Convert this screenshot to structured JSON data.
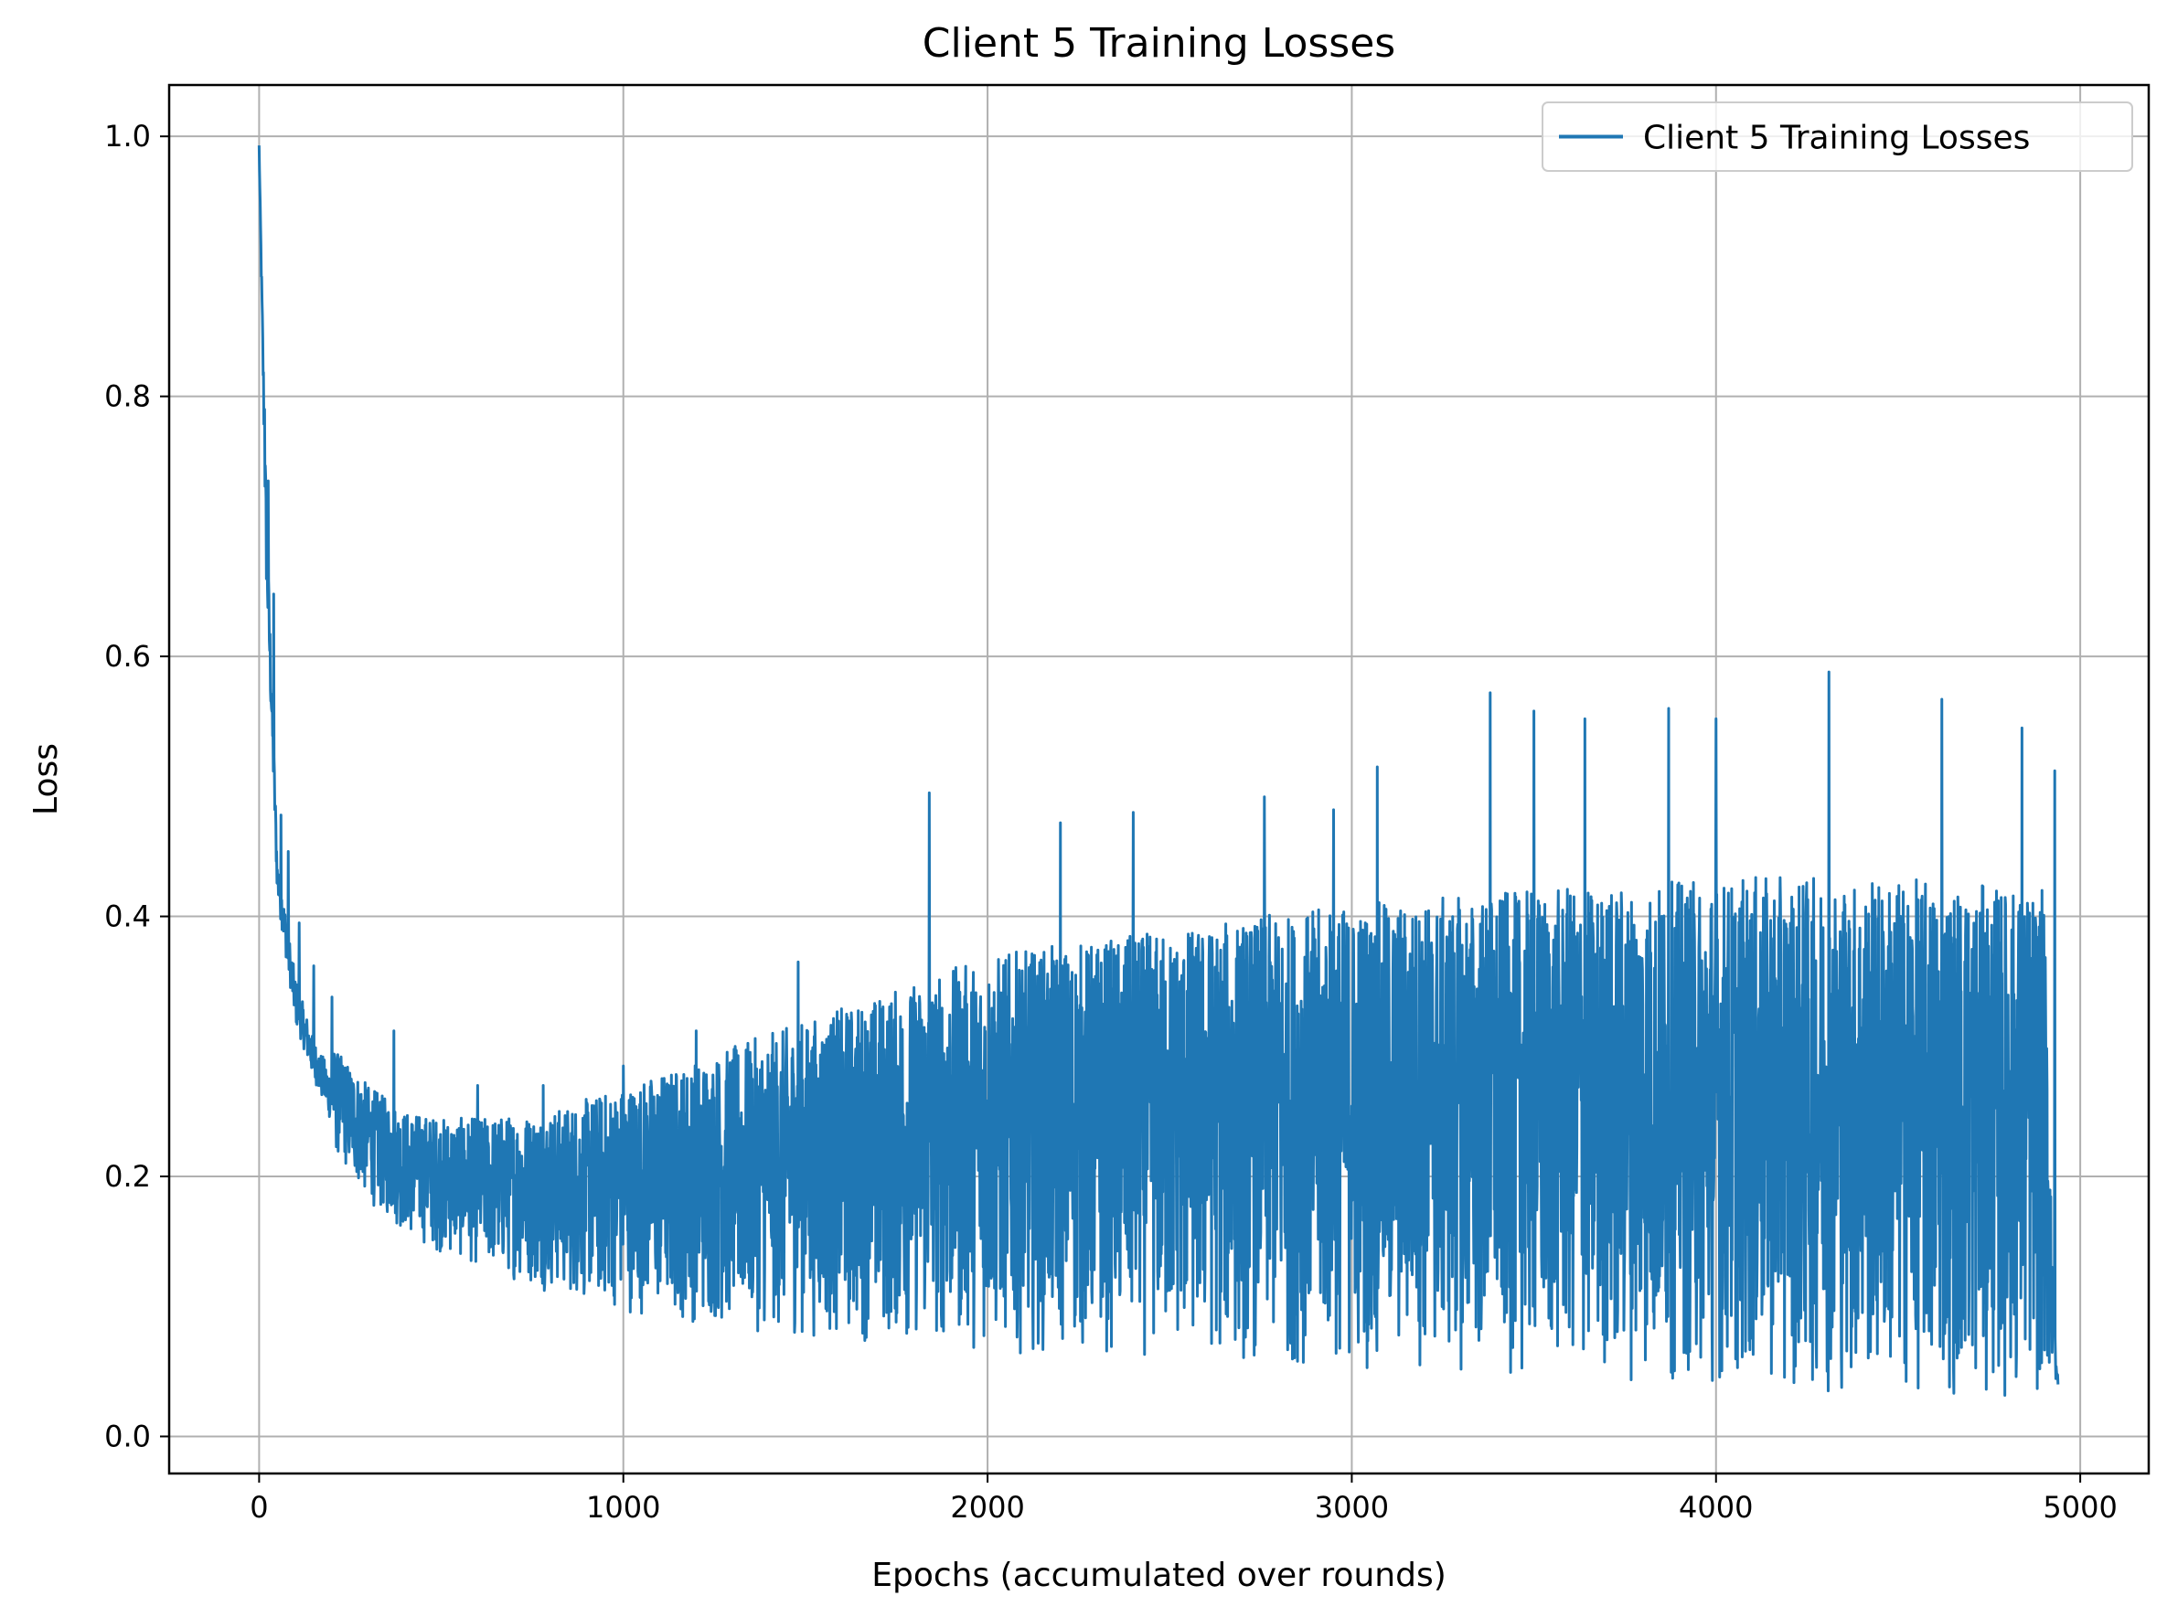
{
  "chart_data": {
    "type": "line",
    "title": "Client 5 Training Losses",
    "xlabel": "Epochs (accumulated over rounds)",
    "ylabel": "Loss",
    "xlim": [
      -247,
      5188
    ],
    "ylim": [
      -0.0285,
      1.0395
    ],
    "xticks": [
      0,
      1000,
      2000,
      3000,
      4000,
      5000
    ],
    "xtick_labels": [
      "0",
      "1000",
      "2000",
      "3000",
      "4000",
      "5000"
    ],
    "yticks": [
      0.0,
      0.2,
      0.4,
      0.6,
      0.8,
      1.0
    ],
    "ytick_labels": [
      "0.0",
      "0.2",
      "0.4",
      "0.6",
      "0.8",
      "1.0"
    ],
    "grid": true,
    "legend_position": "top-right",
    "color": "#1f77b4",
    "n_points": 4940,
    "series": [
      {
        "name": "Client 5 Training Losses",
        "lower_envelope": {
          "x": [
            0,
            20,
            50,
            100,
            150,
            200,
            300,
            400,
            500,
            600,
            800,
            1000,
            1200,
            1500,
            2000,
            2500,
            3000,
            3500,
            4000,
            4500,
            4900,
            4935
          ],
          "y": [
            0.99,
            0.62,
            0.4,
            0.3,
            0.26,
            0.22,
            0.18,
            0.155,
            0.14,
            0.13,
            0.11,
            0.095,
            0.085,
            0.075,
            0.065,
            0.058,
            0.05,
            0.045,
            0.038,
            0.03,
            0.025,
            0.04
          ]
        },
        "upper_envelope": {
          "x": [
            0,
            20,
            50,
            100,
            150,
            200,
            300,
            400,
            500,
            600,
            800,
            1000,
            1200,
            1500,
            2000,
            2500,
            3000,
            3500,
            4000,
            4500,
            4900,
            4935
          ],
          "y": [
            0.99,
            0.75,
            0.46,
            0.37,
            0.32,
            0.3,
            0.27,
            0.25,
            0.245,
            0.245,
            0.25,
            0.27,
            0.29,
            0.32,
            0.37,
            0.39,
            0.41,
            0.42,
            0.43,
            0.43,
            0.42,
            0.05
          ]
        },
        "peaks": [
          {
            "x": 0,
            "y": 0.993
          },
          {
            "x": 15,
            "y": 0.79
          },
          {
            "x": 25,
            "y": 0.735
          },
          {
            "x": 40,
            "y": 0.648
          },
          {
            "x": 60,
            "y": 0.478
          },
          {
            "x": 80,
            "y": 0.45
          },
          {
            "x": 110,
            "y": 0.395
          },
          {
            "x": 150,
            "y": 0.362
          },
          {
            "x": 200,
            "y": 0.338
          },
          {
            "x": 370,
            "y": 0.312
          },
          {
            "x": 600,
            "y": 0.27
          },
          {
            "x": 780,
            "y": 0.27
          },
          {
            "x": 1000,
            "y": 0.285
          },
          {
            "x": 1200,
            "y": 0.312
          },
          {
            "x": 1480,
            "y": 0.365
          },
          {
            "x": 1840,
            "y": 0.495
          },
          {
            "x": 2200,
            "y": 0.472
          },
          {
            "x": 2400,
            "y": 0.48
          },
          {
            "x": 2760,
            "y": 0.492
          },
          {
            "x": 2950,
            "y": 0.482
          },
          {
            "x": 3070,
            "y": 0.515
          },
          {
            "x": 3380,
            "y": 0.572
          },
          {
            "x": 3500,
            "y": 0.558
          },
          {
            "x": 3640,
            "y": 0.552
          },
          {
            "x": 3870,
            "y": 0.56
          },
          {
            "x": 4000,
            "y": 0.552
          },
          {
            "x": 4310,
            "y": 0.588
          },
          {
            "x": 4620,
            "y": 0.567
          },
          {
            "x": 4840,
            "y": 0.545
          },
          {
            "x": 4930,
            "y": 0.512
          }
        ],
        "final_value": 0.04
      }
    ]
  }
}
